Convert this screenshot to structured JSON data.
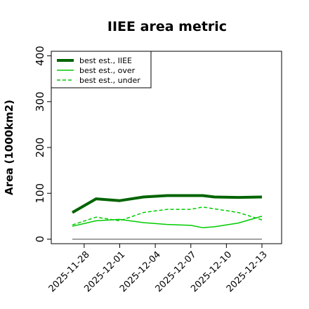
{
  "chart_data": {
    "type": "line",
    "title": "IIEE area metric",
    "xlabel": "",
    "ylabel": "Area (1000km2)",
    "ylim": [
      -10,
      410
    ],
    "y_ticks": [
      0,
      100,
      200,
      300,
      400
    ],
    "x_ticks": [
      "2025-11-28",
      "2025-12-01",
      "2025-12-04",
      "2025-12-07",
      "2025-12-10",
      "2025-12-13"
    ],
    "x": [
      "2025-11-27",
      "2025-11-29",
      "2025-12-01",
      "2025-12-03",
      "2025-12-05",
      "2025-12-07",
      "2025-12-08",
      "2025-12-09",
      "2025-12-11",
      "2025-12-13"
    ],
    "legend_position": "top-left",
    "reference_line": 0,
    "series": [
      {
        "name": "best est., IIEE",
        "color": "#006400",
        "style": "solid-thick",
        "values": [
          58,
          88,
          84,
          92,
          95,
          95,
          95,
          92,
          91,
          92
        ]
      },
      {
        "name": "best est., over",
        "color": "#00cc00",
        "style": "solid",
        "values": [
          28,
          40,
          43,
          36,
          32,
          30,
          25,
          27,
          35,
          50
        ]
      },
      {
        "name": "best est., under",
        "color": "#00cc00",
        "style": "dashed",
        "values": [
          31,
          48,
          40,
          58,
          65,
          65,
          70,
          66,
          58,
          42
        ]
      }
    ]
  }
}
